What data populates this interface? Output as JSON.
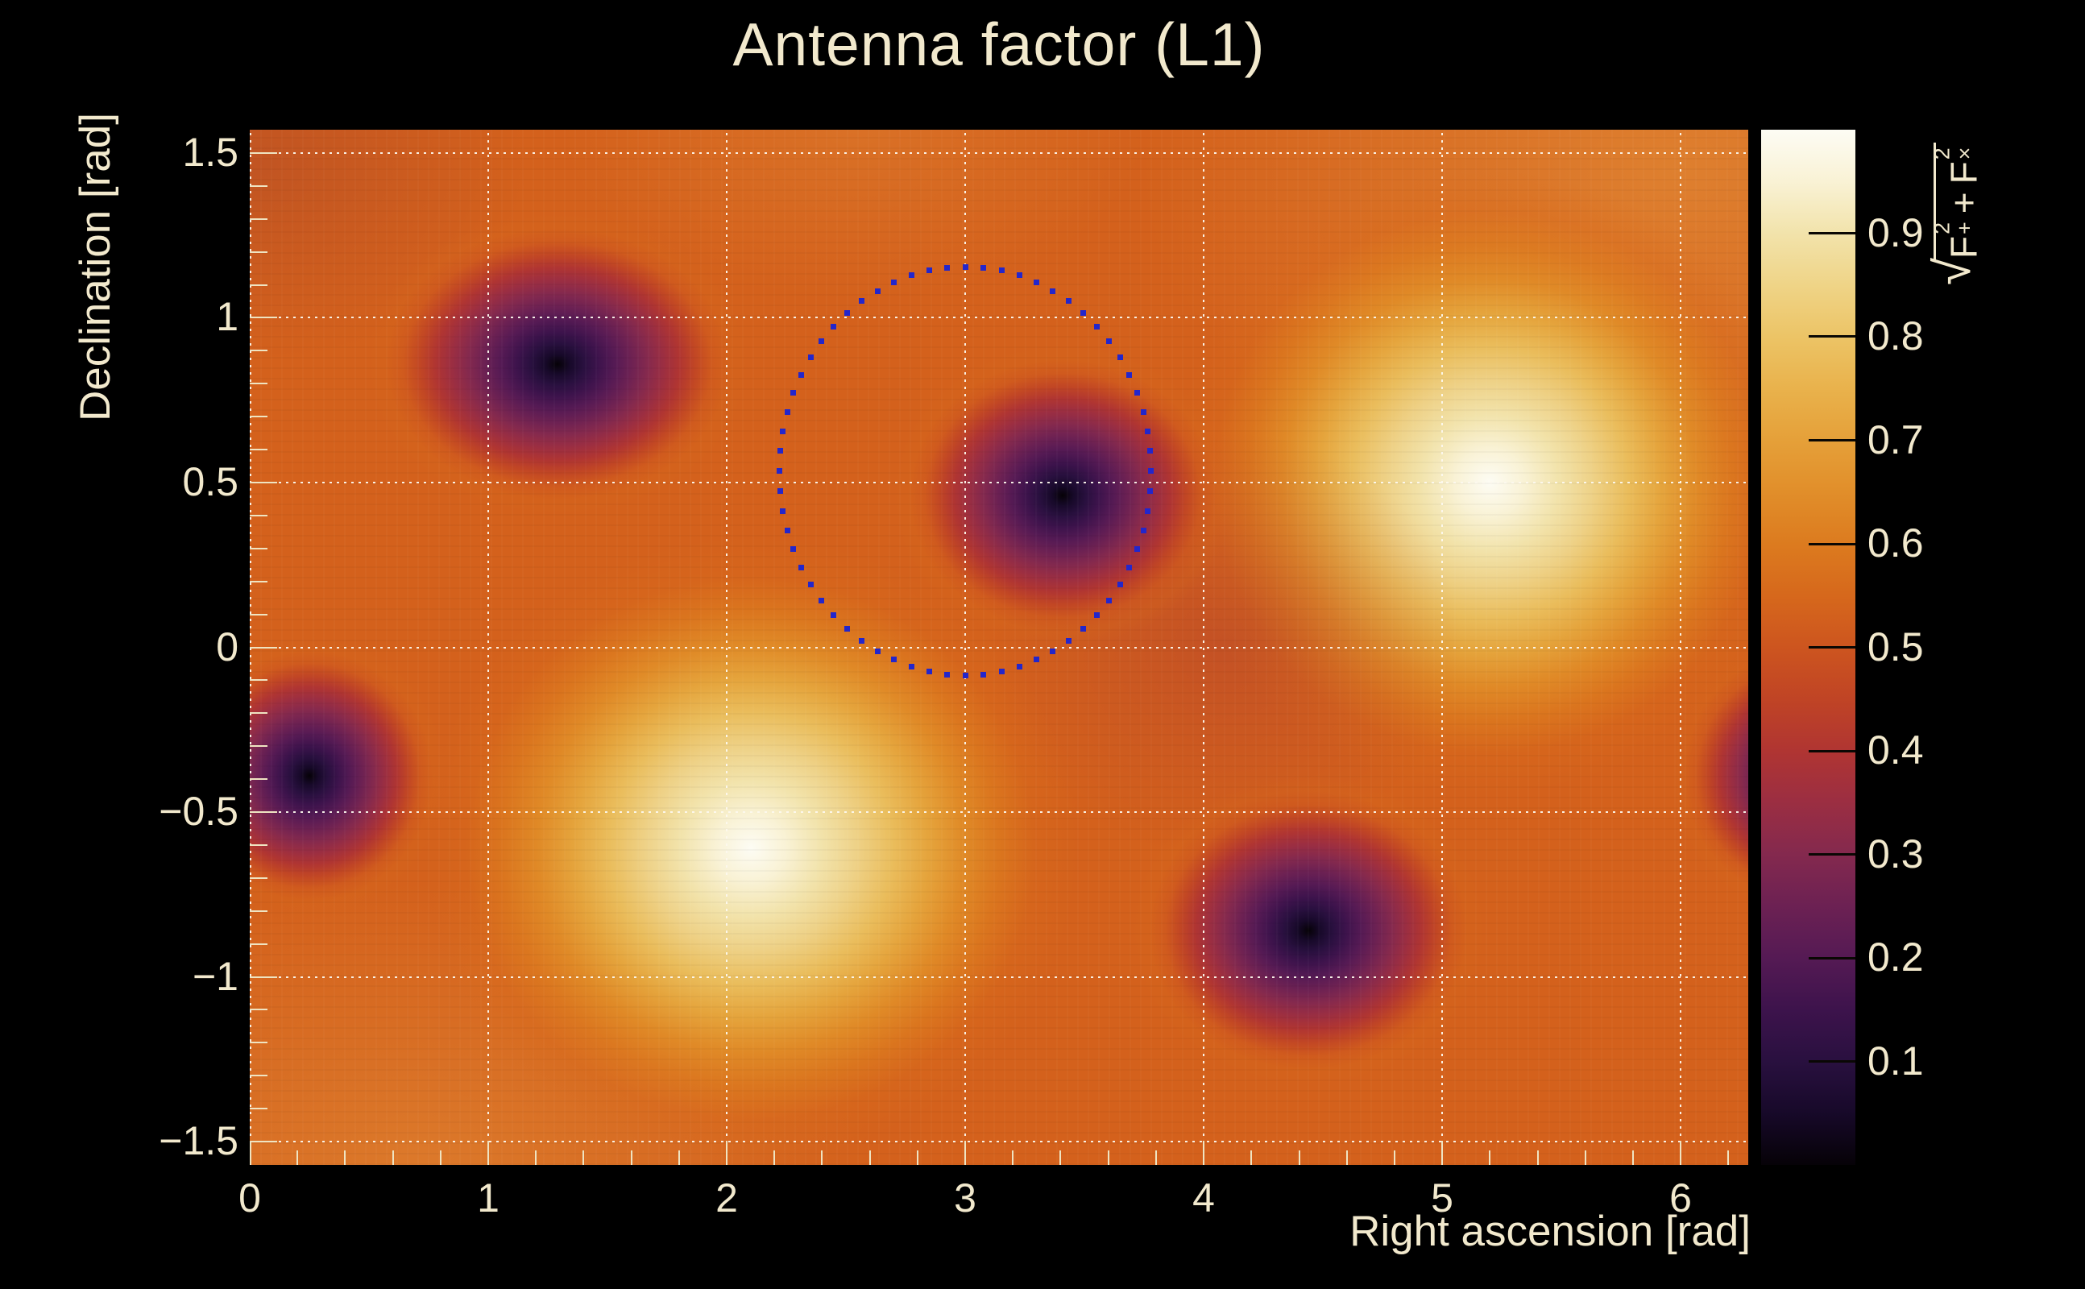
{
  "background": "#000000",
  "text_color": "#f2e9cd",
  "chart_data": {
    "type": "heatmap",
    "title": "Antenna factor (L1)",
    "xlabel": "Right ascension [rad]",
    "ylabel": "Declination [rad]",
    "zlabel": "√(F₊² + F×²)",
    "zlabel_parts": {
      "radical": "√",
      "f1": "F",
      "f1_sup": "2",
      "f1_sub": "+",
      "plus": "+",
      "f2": "F",
      "f2_sup": "2",
      "f2_sub": "×"
    },
    "x_range": [
      0,
      6.2832
    ],
    "y_range": [
      -1.5708,
      1.5708
    ],
    "z_range": [
      0,
      1
    ],
    "grid": "dotted major gridlines, cream on heatmap",
    "legend_position": "right colorbar",
    "x_ticks": [
      [
        0,
        "0"
      ],
      [
        1,
        "1"
      ],
      [
        2,
        "2"
      ],
      [
        3,
        "3"
      ],
      [
        4,
        "4"
      ],
      [
        5,
        "5"
      ],
      [
        6,
        "6"
      ]
    ],
    "x_minor_step": 0.2,
    "y_ticks": [
      [
        1.5,
        "1.5"
      ],
      [
        1,
        "1"
      ],
      [
        0.5,
        "0.5"
      ],
      [
        0,
        "0"
      ],
      [
        -0.5,
        "−0.5"
      ],
      [
        -1,
        "−1"
      ],
      [
        -1.5,
        "−1.5"
      ]
    ],
    "y_minor_step": 0.1,
    "colorbar_ticks": [
      [
        0.9,
        "0.9"
      ],
      [
        0.8,
        "0.8"
      ],
      [
        0.7,
        "0.7"
      ],
      [
        0.6,
        "0.6"
      ],
      [
        0.5,
        "0.5"
      ],
      [
        0.4,
        "0.4"
      ],
      [
        0.3,
        "0.3"
      ],
      [
        0.2,
        "0.2"
      ],
      [
        0.1,
        "0.1"
      ]
    ],
    "palette": [
      {
        "v": 1.0,
        "c": "#fdfcf4"
      },
      {
        "v": 0.95,
        "c": "#f9f2d5"
      },
      {
        "v": 0.9,
        "c": "#f2e3ab"
      },
      {
        "v": 0.85,
        "c": "#efd487"
      },
      {
        "v": 0.8,
        "c": "#ecc466"
      },
      {
        "v": 0.75,
        "c": "#e9b24c"
      },
      {
        "v": 0.7,
        "c": "#e5a039"
      },
      {
        "v": 0.65,
        "c": "#e18e2a"
      },
      {
        "v": 0.6,
        "c": "#dc7b1f"
      },
      {
        "v": 0.55,
        "c": "#d6681c"
      },
      {
        "v": 0.5,
        "c": "#cd551f"
      },
      {
        "v": 0.45,
        "c": "#c04425"
      },
      {
        "v": 0.4,
        "c": "#b03532"
      },
      {
        "v": 0.35,
        "c": "#9b2e42"
      },
      {
        "v": 0.3,
        "c": "#84294e"
      },
      {
        "v": 0.25,
        "c": "#6c2153"
      },
      {
        "v": 0.2,
        "c": "#551a54"
      },
      {
        "v": 0.15,
        "c": "#3d134c"
      },
      {
        "v": 0.1,
        "c": "#29103f"
      },
      {
        "v": 0.05,
        "c": "#170929"
      },
      {
        "v": 0.0,
        "c": "#060207"
      }
    ],
    "base_value": 0.57,
    "maxima": [
      {
        "ra": 5.2,
        "dec": 0.5,
        "z": 0.97,
        "rx": 1.45,
        "ry": 1.03
      },
      {
        "ra": 2.1,
        "dec": -0.61,
        "z": 0.97,
        "rx": 1.49,
        "ry": 1.03
      }
    ],
    "minima": [
      {
        "ra": 1.29,
        "dec": 0.86,
        "z": 0.02,
        "rx": 0.85,
        "ry": 0.49
      },
      {
        "ra": 3.41,
        "dec": 0.46,
        "z": 0.02,
        "rx": 0.76,
        "ry": 0.49
      },
      {
        "ra": 4.44,
        "dec": -0.86,
        "z": 0.02,
        "rx": 0.79,
        "ry": 0.5
      },
      {
        "ra": 0.25,
        "dec": -0.39,
        "z": 0.02,
        "rx": 0.61,
        "ry": 0.45
      },
      {
        "ra": 6.53,
        "dec": -0.39,
        "z": 0.02,
        "rx": 0.61,
        "ry": 0.45
      }
    ],
    "sky_circle": {
      "ra": 3.0,
      "dec": 0.535,
      "rx": 0.78,
      "ry": 0.62,
      "points": 64,
      "color": "#2326cb",
      "marker_px": 7,
      "style": "dotted"
    }
  }
}
